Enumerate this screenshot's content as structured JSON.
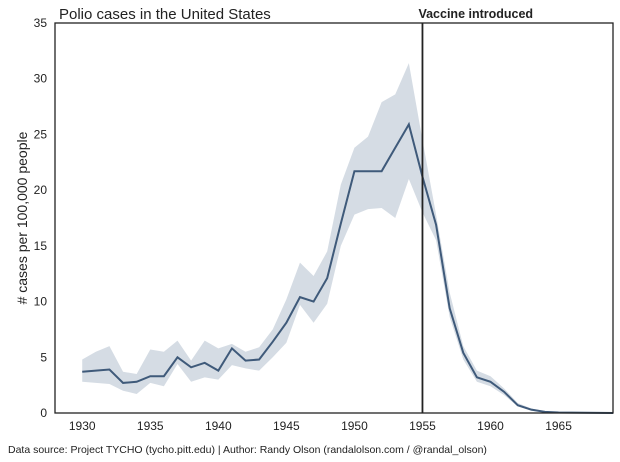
{
  "chart_data": {
    "type": "line",
    "title": "Polio cases in the United States",
    "xlabel": "",
    "ylabel": "# cases per 100,000 people",
    "xlim": [
      1928,
      1969
    ],
    "ylim": [
      0,
      35
    ],
    "xticks": [
      1930,
      1935,
      1940,
      1945,
      1950,
      1955,
      1960,
      1965
    ],
    "yticks": [
      0,
      5,
      10,
      15,
      20,
      25,
      30,
      35
    ],
    "grid": false,
    "annotation": {
      "text": "Vaccine introduced",
      "x": 1955
    },
    "colors": {
      "line": "#3f5a7a",
      "band": "#d5dce4",
      "vline": "#222222"
    },
    "x": [
      1930,
      1931,
      1932,
      1933,
      1934,
      1935,
      1936,
      1937,
      1938,
      1939,
      1940,
      1941,
      1942,
      1943,
      1944,
      1945,
      1946,
      1947,
      1948,
      1949,
      1950,
      1951,
      1952,
      1953,
      1954,
      1955,
      1956,
      1957,
      1958,
      1959,
      1960,
      1961,
      1962,
      1963,
      1964,
      1965,
      1966,
      1967,
      1968,
      1969
    ],
    "values": [
      3.7,
      3.8,
      3.9,
      2.7,
      2.8,
      3.3,
      3.3,
      5.0,
      4.1,
      4.5,
      3.8,
      5.8,
      4.7,
      4.8,
      6.4,
      8.1,
      10.4,
      10.0,
      12.1,
      17.0,
      21.7,
      21.7,
      21.7,
      23.8,
      25.9,
      21.2,
      16.9,
      9.4,
      5.4,
      3.2,
      2.8,
      1.9,
      0.7,
      0.3,
      0.1,
      0.05,
      0.03,
      0.02,
      0.01,
      0.0
    ],
    "upper": [
      4.8,
      5.5,
      6.0,
      3.7,
      3.5,
      5.7,
      5.5,
      6.5,
      4.7,
      6.5,
      5.8,
      6.2,
      5.5,
      5.9,
      7.5,
      10.2,
      13.5,
      12.3,
      14.5,
      20.5,
      23.8,
      24.8,
      27.9,
      28.6,
      31.4,
      24.5,
      17.8,
      10.8,
      6.0,
      3.8,
      3.3,
      2.2,
      0.9,
      0.4,
      0.15,
      0.08,
      0.05,
      0.03,
      0.02,
      0.01
    ],
    "lower": [
      2.8,
      2.7,
      2.6,
      2.0,
      1.7,
      2.7,
      2.4,
      4.4,
      2.8,
      3.2,
      3.0,
      4.3,
      4.0,
      3.8,
      5.0,
      6.3,
      9.7,
      8.1,
      9.8,
      15.0,
      17.8,
      18.3,
      18.4,
      17.5,
      21.0,
      18.0,
      15.5,
      8.6,
      4.8,
      2.8,
      2.4,
      1.6,
      0.6,
      0.2,
      0.05,
      0.02,
      0.01,
      0.01,
      0.0,
      0.0
    ]
  },
  "footer": "Data source: Project TYCHO (tycho.pitt.edu) | Author: Randy Olson (randalolson.com / @randal_olson)"
}
